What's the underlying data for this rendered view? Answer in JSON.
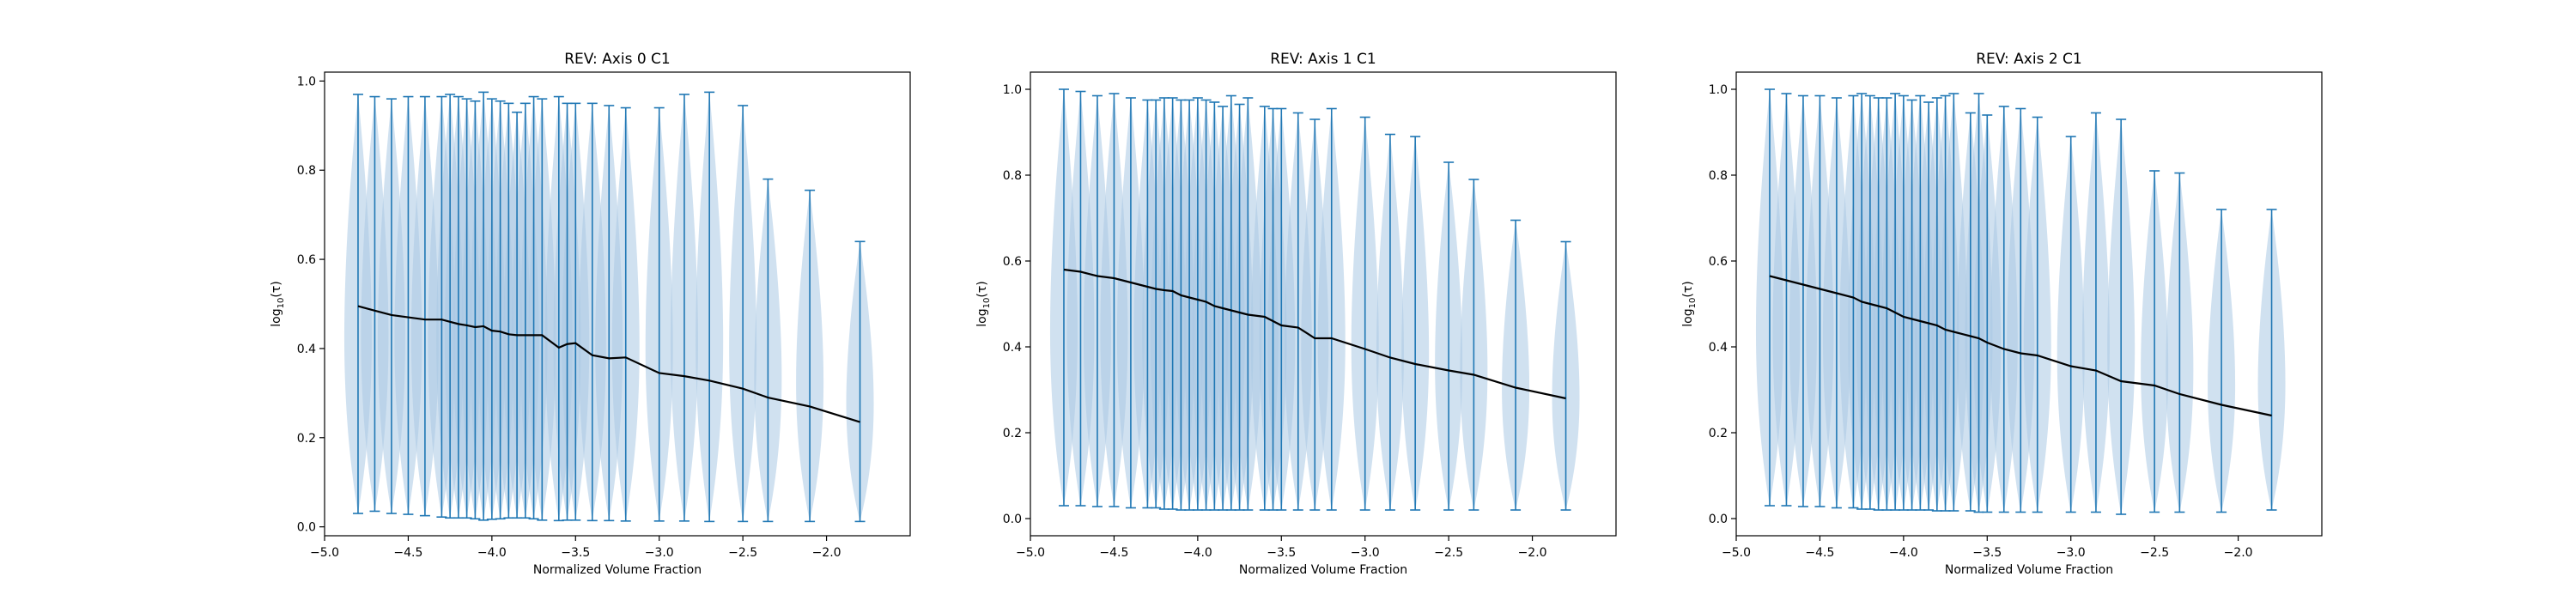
{
  "figure": {
    "background": "#ffffff"
  },
  "chart_data": [
    {
      "type": "violin",
      "title": "REV: Axis 0 C1",
      "xlabel": "Normalized Volume Fraction",
      "ylabel": "log10(τ)",
      "ylabel_base": "log",
      "ylabel_sub": "10",
      "ylabel_arg": "(τ)",
      "xlim": [
        -5.0,
        -1.5
      ],
      "ylim": [
        -0.02,
        1.02
      ],
      "xticks": [
        -5.0,
        -4.5,
        -4.0,
        -3.5,
        -3.0,
        -2.5,
        -2.0
      ],
      "xtick_labels": [
        "−5.0",
        "−4.5",
        "−4.0",
        "−3.5",
        "−3.0",
        "−2.5",
        "−2.0"
      ],
      "yticks": [
        0.0,
        0.2,
        0.4,
        0.6,
        0.8,
        1.0
      ],
      "ytick_labels": [
        "0.0",
        "0.2",
        "0.4",
        "0.6",
        "0.8",
        "1.0"
      ],
      "violin_color": "#a9c9e3",
      "line_color": "#1f77b4",
      "mean_line_color": "#000000",
      "x": [
        -4.8,
        -4.7,
        -4.6,
        -4.5,
        -4.4,
        -4.3,
        -4.25,
        -4.2,
        -4.15,
        -4.1,
        -4.05,
        -4.0,
        -3.95,
        -3.9,
        -3.85,
        -3.8,
        -3.75,
        -3.7,
        -3.6,
        -3.55,
        -3.5,
        -3.4,
        -3.3,
        -3.2,
        -3.0,
        -2.85,
        -2.7,
        -2.5,
        -2.35,
        -2.1,
        -1.8
      ],
      "max": [
        0.97,
        0.965,
        0.96,
        0.965,
        0.965,
        0.965,
        0.97,
        0.965,
        0.96,
        0.955,
        0.975,
        0.96,
        0.955,
        0.95,
        0.93,
        0.95,
        0.965,
        0.96,
        0.965,
        0.95,
        0.95,
        0.95,
        0.945,
        0.94,
        0.94,
        0.97,
        0.975,
        0.945,
        0.78,
        0.755,
        0.64
      ],
      "min": [
        0.03,
        0.035,
        0.03,
        0.028,
        0.025,
        0.022,
        0.02,
        0.02,
        0.02,
        0.018,
        0.015,
        0.017,
        0.018,
        0.02,
        0.02,
        0.02,
        0.018,
        0.015,
        0.014,
        0.015,
        0.015,
        0.014,
        0.014,
        0.013,
        0.013,
        0.013,
        0.012,
        0.012,
        0.012,
        0.012,
        0.012
      ],
      "mean_x": [
        -4.8,
        -4.7,
        -4.6,
        -4.5,
        -4.4,
        -4.3,
        -4.25,
        -4.2,
        -4.15,
        -4.1,
        -4.05,
        -4.0,
        -3.95,
        -3.9,
        -3.85,
        -3.8,
        -3.75,
        -3.7,
        -3.6,
        -3.55,
        -3.5,
        -3.4,
        -3.3,
        -3.2,
        -3.0,
        -2.85,
        -2.7,
        -2.5,
        -2.35,
        -2.1,
        -1.8
      ],
      "mean": [
        0.495,
        0.485,
        0.475,
        0.47,
        0.465,
        0.465,
        0.46,
        0.455,
        0.452,
        0.448,
        0.45,
        0.44,
        0.438,
        0.432,
        0.43,
        0.43,
        0.43,
        0.43,
        0.402,
        0.41,
        0.412,
        0.385,
        0.378,
        0.38,
        0.345,
        0.338,
        0.328,
        0.31,
        0.29,
        0.27,
        0.235
      ]
    },
    {
      "type": "violin",
      "title": "REV: Axis 1 C1",
      "xlabel": "Normalized Volume Fraction",
      "ylabel": "log10(τ)",
      "ylabel_base": "log",
      "ylabel_sub": "10",
      "ylabel_arg": "(τ)",
      "xlim": [
        -5.0,
        -1.5
      ],
      "ylim": [
        -0.04,
        1.04
      ],
      "xticks": [
        -5.0,
        -4.5,
        -4.0,
        -3.5,
        -3.0,
        -2.5,
        -2.0
      ],
      "xtick_labels": [
        "−5.0",
        "−4.5",
        "−4.0",
        "−3.5",
        "−3.0",
        "−2.5",
        "−2.0"
      ],
      "yticks": [
        0.0,
        0.2,
        0.4,
        0.6,
        0.8,
        1.0
      ],
      "ytick_labels": [
        "0.0",
        "0.2",
        "0.4",
        "0.6",
        "0.8",
        "1.0"
      ],
      "violin_color": "#a9c9e3",
      "line_color": "#1f77b4",
      "mean_line_color": "#000000",
      "x": [
        -4.8,
        -4.7,
        -4.6,
        -4.5,
        -4.4,
        -4.3,
        -4.25,
        -4.2,
        -4.15,
        -4.1,
        -4.05,
        -4.0,
        -3.95,
        -3.9,
        -3.85,
        -3.8,
        -3.75,
        -3.7,
        -3.6,
        -3.55,
        -3.5,
        -3.4,
        -3.3,
        -3.2,
        -3.0,
        -2.85,
        -2.7,
        -2.5,
        -2.35,
        -2.1,
        -1.8
      ],
      "max": [
        1.0,
        0.995,
        0.985,
        0.99,
        0.98,
        0.975,
        0.975,
        0.98,
        0.98,
        0.975,
        0.975,
        0.98,
        0.975,
        0.97,
        0.96,
        0.985,
        0.965,
        0.98,
        0.96,
        0.955,
        0.955,
        0.945,
        0.93,
        0.955,
        0.935,
        0.895,
        0.89,
        0.83,
        0.79,
        0.695,
        0.645
      ],
      "min": [
        0.03,
        0.03,
        0.028,
        0.028,
        0.025,
        0.025,
        0.025,
        0.022,
        0.022,
        0.02,
        0.02,
        0.02,
        0.02,
        0.02,
        0.02,
        0.02,
        0.02,
        0.02,
        0.02,
        0.02,
        0.02,
        0.02,
        0.02,
        0.02,
        0.02,
        0.02,
        0.02,
        0.02,
        0.02,
        0.02,
        0.02
      ],
      "mean_x": [
        -4.8,
        -4.7,
        -4.6,
        -4.5,
        -4.4,
        -4.3,
        -4.25,
        -4.2,
        -4.15,
        -4.1,
        -4.05,
        -4.0,
        -3.95,
        -3.9,
        -3.85,
        -3.8,
        -3.75,
        -3.7,
        -3.6,
        -3.55,
        -3.5,
        -3.4,
        -3.3,
        -3.2,
        -3.0,
        -2.85,
        -2.7,
        -2.5,
        -2.35,
        -2.1,
        -1.8
      ],
      "mean": [
        0.58,
        0.575,
        0.565,
        0.56,
        0.55,
        0.54,
        0.535,
        0.532,
        0.53,
        0.52,
        0.515,
        0.51,
        0.505,
        0.495,
        0.49,
        0.485,
        0.48,
        0.475,
        0.47,
        0.46,
        0.45,
        0.445,
        0.42,
        0.42,
        0.395,
        0.375,
        0.36,
        0.345,
        0.335,
        0.305,
        0.28
      ]
    },
    {
      "type": "violin",
      "title": "REV: Axis 2 C1",
      "xlabel": "Normalized Volume Fraction",
      "ylabel": "log10(τ)",
      "ylabel_base": "log",
      "ylabel_sub": "10",
      "ylabel_arg": "(τ)",
      "xlim": [
        -5.0,
        -1.5
      ],
      "ylim": [
        -0.04,
        1.04
      ],
      "xticks": [
        -5.0,
        -4.5,
        -4.0,
        -3.5,
        -3.0,
        -2.5,
        -2.0
      ],
      "xtick_labels": [
        "−5.0",
        "−4.5",
        "−4.0",
        "−3.5",
        "−3.0",
        "−2.5",
        "−2.0"
      ],
      "yticks": [
        0.0,
        0.2,
        0.4,
        0.6,
        0.8,
        1.0
      ],
      "ytick_labels": [
        "0.0",
        "0.2",
        "0.4",
        "0.6",
        "0.8",
        "1.0"
      ],
      "violin_color": "#a9c9e3",
      "line_color": "#1f77b4",
      "mean_line_color": "#000000",
      "x": [
        -4.8,
        -4.7,
        -4.6,
        -4.5,
        -4.4,
        -4.3,
        -4.25,
        -4.2,
        -4.15,
        -4.1,
        -4.05,
        -4.0,
        -3.95,
        -3.9,
        -3.85,
        -3.8,
        -3.75,
        -3.7,
        -3.6,
        -3.55,
        -3.5,
        -3.4,
        -3.3,
        -3.2,
        -3.0,
        -2.85,
        -2.7,
        -2.5,
        -2.35,
        -2.1,
        -1.8
      ],
      "max": [
        1.0,
        0.99,
        0.985,
        0.985,
        0.98,
        0.985,
        0.99,
        0.985,
        0.98,
        0.98,
        0.99,
        0.985,
        0.975,
        0.985,
        0.97,
        0.98,
        0.985,
        0.99,
        0.945,
        0.99,
        0.94,
        0.96,
        0.955,
        0.935,
        0.89,
        0.945,
        0.93,
        0.81,
        0.805,
        0.72,
        0.72
      ],
      "min": [
        0.03,
        0.03,
        0.028,
        0.028,
        0.025,
        0.025,
        0.022,
        0.022,
        0.02,
        0.02,
        0.02,
        0.02,
        0.02,
        0.02,
        0.02,
        0.018,
        0.018,
        0.018,
        0.018,
        0.015,
        0.015,
        0.015,
        0.015,
        0.015,
        0.015,
        0.015,
        0.01,
        0.015,
        0.015,
        0.015,
        0.02
      ],
      "mean_x": [
        -4.8,
        -4.7,
        -4.6,
        -4.5,
        -4.4,
        -4.3,
        -4.25,
        -4.2,
        -4.15,
        -4.1,
        -4.05,
        -4.0,
        -3.95,
        -3.9,
        -3.85,
        -3.8,
        -3.75,
        -3.7,
        -3.6,
        -3.55,
        -3.5,
        -3.4,
        -3.3,
        -3.2,
        -3.0,
        -2.85,
        -2.7,
        -2.5,
        -2.35,
        -2.1,
        -1.8
      ],
      "mean": [
        0.565,
        0.555,
        0.545,
        0.535,
        0.525,
        0.515,
        0.505,
        0.5,
        0.495,
        0.49,
        0.48,
        0.47,
        0.465,
        0.46,
        0.455,
        0.45,
        0.44,
        0.435,
        0.425,
        0.42,
        0.41,
        0.395,
        0.385,
        0.38,
        0.355,
        0.345,
        0.32,
        0.31,
        0.29,
        0.265,
        0.24
      ]
    }
  ]
}
